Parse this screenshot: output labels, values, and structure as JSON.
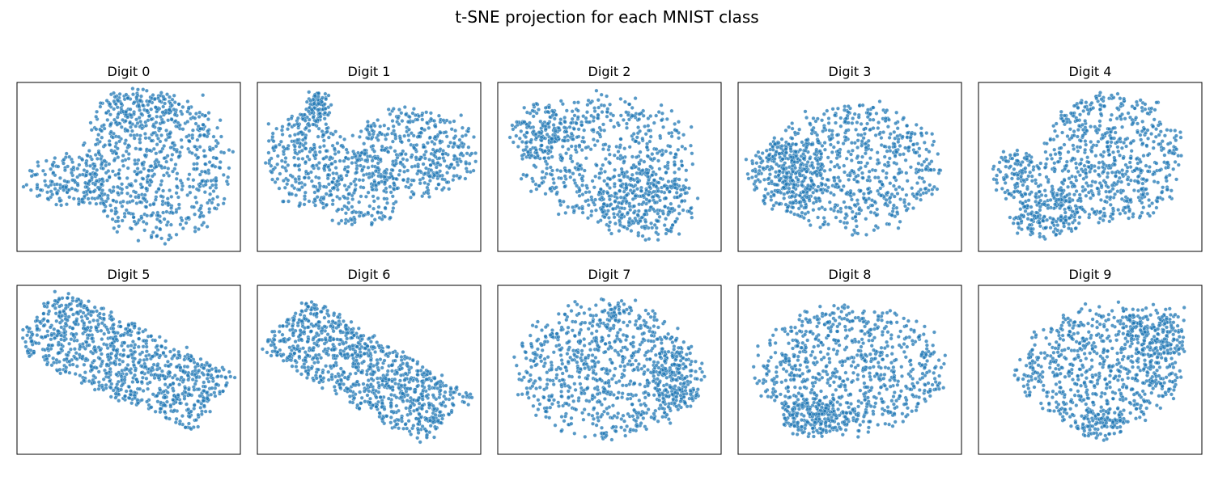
{
  "figure": {
    "title": "t-SNE projection for each MNIST class",
    "point_color": "#1f77b4",
    "point_edge_color": "#ffffff",
    "frame_color": "#000000"
  },
  "chart_data": [
    {
      "type": "scatter",
      "title": "Digit 0",
      "axes_visible": false,
      "grid": false,
      "shape": "blob",
      "seed": 11,
      "n": 950,
      "note": "points are densely scattered forming a roughly rounded blob with a protruding left arm",
      "density_shape": [
        {
          "cx": 0.62,
          "cy": 0.5,
          "rx": 0.36,
          "ry": 0.46,
          "w": 0.7
        },
        {
          "cx": 0.22,
          "cy": 0.58,
          "rx": 0.2,
          "ry": 0.16,
          "w": 0.18
        },
        {
          "cx": 0.55,
          "cy": 0.15,
          "rx": 0.18,
          "ry": 0.12,
          "w": 0.12
        }
      ]
    },
    {
      "type": "scatter",
      "title": "Digit 1",
      "axes_visible": false,
      "grid": false,
      "shape": "blob",
      "seed": 23,
      "n": 950,
      "density_shape": [
        {
          "cx": 0.22,
          "cy": 0.45,
          "rx": 0.2,
          "ry": 0.3,
          "w": 0.3
        },
        {
          "cx": 0.7,
          "cy": 0.42,
          "rx": 0.3,
          "ry": 0.28,
          "w": 0.4
        },
        {
          "cx": 0.45,
          "cy": 0.65,
          "rx": 0.18,
          "ry": 0.25,
          "w": 0.2
        },
        {
          "cx": 0.27,
          "cy": 0.15,
          "rx": 0.05,
          "ry": 0.1,
          "w": 0.1
        }
      ]
    },
    {
      "type": "scatter",
      "title": "Digit 2",
      "axes_visible": false,
      "grid": false,
      "shape": "blob",
      "seed": 37,
      "n": 950,
      "density_shape": [
        {
          "cx": 0.48,
          "cy": 0.45,
          "rx": 0.4,
          "ry": 0.4,
          "w": 0.55
        },
        {
          "cx": 0.65,
          "cy": 0.72,
          "rx": 0.25,
          "ry": 0.22,
          "w": 0.3
        },
        {
          "cx": 0.2,
          "cy": 0.3,
          "rx": 0.15,
          "ry": 0.18,
          "w": 0.15
        }
      ]
    },
    {
      "type": "scatter",
      "title": "Digit 3",
      "axes_visible": false,
      "grid": false,
      "shape": "blob",
      "seed": 41,
      "n": 950,
      "density_shape": [
        {
          "cx": 0.52,
          "cy": 0.5,
          "rx": 0.4,
          "ry": 0.4,
          "w": 0.75
        },
        {
          "cx": 0.22,
          "cy": 0.55,
          "rx": 0.18,
          "ry": 0.22,
          "w": 0.25
        }
      ]
    },
    {
      "type": "scatter",
      "title": "Digit 4",
      "axes_visible": false,
      "grid": false,
      "shape": "blob",
      "seed": 53,
      "n": 950,
      "density_shape": [
        {
          "cx": 0.6,
          "cy": 0.45,
          "rx": 0.34,
          "ry": 0.42,
          "w": 0.65
        },
        {
          "cx": 0.3,
          "cy": 0.78,
          "rx": 0.16,
          "ry": 0.14,
          "w": 0.2
        },
        {
          "cx": 0.18,
          "cy": 0.55,
          "rx": 0.12,
          "ry": 0.15,
          "w": 0.15
        }
      ]
    },
    {
      "type": "scatter",
      "title": "Digit 5",
      "axes_visible": false,
      "grid": false,
      "shape": "band",
      "seed": 67,
      "n": 950,
      "band": {
        "x0": 0.08,
        "y0": 0.2,
        "x1": 0.88,
        "y1": 0.7,
        "half_width": 0.2
      }
    },
    {
      "type": "scatter",
      "title": "Digit 6",
      "axes_visible": false,
      "grid": false,
      "shape": "band",
      "seed": 79,
      "n": 950,
      "band": {
        "x0": 0.12,
        "y0": 0.22,
        "x1": 0.85,
        "y1": 0.8,
        "half_width": 0.18
      }
    },
    {
      "type": "scatter",
      "title": "Digit 7",
      "axes_visible": false,
      "grid": false,
      "shape": "blob",
      "seed": 83,
      "n": 950,
      "density_shape": [
        {
          "cx": 0.48,
          "cy": 0.5,
          "rx": 0.42,
          "ry": 0.44,
          "w": 0.85
        },
        {
          "cx": 0.8,
          "cy": 0.55,
          "rx": 0.12,
          "ry": 0.2,
          "w": 0.15
        }
      ]
    },
    {
      "type": "scatter",
      "title": "Digit 8",
      "axes_visible": false,
      "grid": false,
      "shape": "blob",
      "seed": 97,
      "n": 950,
      "density_shape": [
        {
          "cx": 0.5,
          "cy": 0.5,
          "rx": 0.45,
          "ry": 0.4,
          "w": 0.85
        },
        {
          "cx": 0.35,
          "cy": 0.78,
          "rx": 0.16,
          "ry": 0.12,
          "w": 0.15
        }
      ]
    },
    {
      "type": "scatter",
      "title": "Digit 9",
      "axes_visible": false,
      "grid": false,
      "shape": "blob",
      "seed": 101,
      "n": 950,
      "density_shape": [
        {
          "cx": 0.55,
          "cy": 0.48,
          "rx": 0.4,
          "ry": 0.38,
          "w": 0.75
        },
        {
          "cx": 0.8,
          "cy": 0.3,
          "rx": 0.14,
          "ry": 0.2,
          "w": 0.15
        },
        {
          "cx": 0.55,
          "cy": 0.82,
          "rx": 0.12,
          "ry": 0.1,
          "w": 0.1
        }
      ]
    }
  ]
}
